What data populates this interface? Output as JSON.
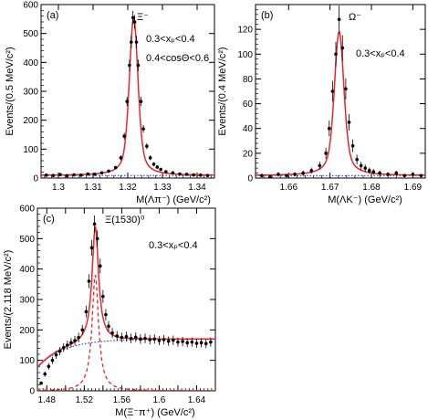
{
  "chart_data": [
    {
      "id": "a",
      "type": "scatter",
      "panel_label": "(a)",
      "particle_label": "Ξ⁻",
      "annotations": [
        "0.3<xₚ<0.4",
        "0.4<cosΘ<0.6"
      ],
      "xlabel": "M(Λπ⁻)  (GeV/c²)",
      "ylabel": "Events/(0.5 MeV/c²)",
      "xlim": [
        1.295,
        1.345
      ],
      "ylim": [
        0,
        600
      ],
      "xticks": [
        1.3,
        1.31,
        1.32,
        1.33,
        1.34
      ],
      "xtick_labels": [
        "1.3",
        "1.31",
        "1.32",
        "1.33",
        "1.34"
      ],
      "yticks": [
        0,
        100,
        200,
        300,
        400,
        500,
        600
      ],
      "ytick_labels": [
        "0",
        "100",
        "200",
        "300",
        "400",
        "500",
        "600"
      ],
      "peak": {
        "mean": 1.3217,
        "height": 555,
        "sigma": 0.0012,
        "gamma": 0.0017,
        "background": 9
      },
      "points": [
        [
          1.2965,
          10
        ],
        [
          1.2985,
          9
        ],
        [
          1.3005,
          12
        ],
        [
          1.3025,
          8
        ],
        [
          1.3045,
          11
        ],
        [
          1.3065,
          10
        ],
        [
          1.3085,
          14
        ],
        [
          1.3105,
          13
        ],
        [
          1.3125,
          18
        ],
        [
          1.3145,
          24
        ],
        [
          1.3165,
          36
        ],
        [
          1.318,
          70
        ],
        [
          1.319,
          145
        ],
        [
          1.3198,
          265
        ],
        [
          1.3205,
          390
        ],
        [
          1.321,
          470
        ],
        [
          1.3215,
          555
        ],
        [
          1.322,
          540
        ],
        [
          1.3225,
          470
        ],
        [
          1.323,
          390
        ],
        [
          1.3238,
          265
        ],
        [
          1.3245,
          170
        ],
        [
          1.3255,
          110
        ],
        [
          1.3265,
          70
        ],
        [
          1.3275,
          48
        ],
        [
          1.3285,
          38
        ],
        [
          1.3295,
          30
        ],
        [
          1.331,
          22
        ],
        [
          1.333,
          18
        ],
        [
          1.335,
          14
        ],
        [
          1.337,
          13
        ],
        [
          1.339,
          11
        ],
        [
          1.341,
          10
        ],
        [
          1.343,
          9
        ]
      ],
      "fit_color": "#e8262c",
      "point_color": "#000000",
      "background_color": "#2040d0"
    },
    {
      "id": "b",
      "type": "scatter",
      "panel_label": "(b)",
      "particle_label": "Ω⁻",
      "annotations": [
        "0.3<xₚ<0.4"
      ],
      "xlabel": "M(ΛK⁻)  (GeV/c²)",
      "ylabel": "Events/(0.4 MeV/c²)",
      "xlim": [
        1.652,
        1.693
      ],
      "ylim": [
        0,
        140
      ],
      "xticks": [
        1.66,
        1.67,
        1.68,
        1.69
      ],
      "xtick_labels": [
        "1.66",
        "1.67",
        "1.68",
        "1.69"
      ],
      "yticks": [
        0,
        20,
        40,
        60,
        80,
        100,
        120
      ],
      "ytick_labels": [
        "0",
        "20",
        "40",
        "60",
        "80",
        "100",
        "120"
      ],
      "peak": {
        "mean": 1.6722,
        "height": 118,
        "sigma": 0.0011,
        "gamma": 0.0016,
        "background": 2
      },
      "points": [
        [
          1.6535,
          2
        ],
        [
          1.6555,
          1
        ],
        [
          1.6575,
          3
        ],
        [
          1.6595,
          2
        ],
        [
          1.6615,
          3
        ],
        [
          1.6635,
          4
        ],
        [
          1.6655,
          6
        ],
        [
          1.6675,
          10
        ],
        [
          1.669,
          20
        ],
        [
          1.6698,
          40
        ],
        [
          1.6706,
          70
        ],
        [
          1.6714,
          100
        ],
        [
          1.6722,
          128
        ],
        [
          1.673,
          105
        ],
        [
          1.6738,
          72
        ],
        [
          1.6746,
          45
        ],
        [
          1.6755,
          26
        ],
        [
          1.6765,
          15
        ],
        [
          1.6775,
          10
        ],
        [
          1.6785,
          8
        ],
        [
          1.6795,
          6
        ],
        [
          1.6805,
          5
        ],
        [
          1.682,
          4
        ],
        [
          1.684,
          3
        ],
        [
          1.686,
          4
        ],
        [
          1.688,
          2
        ],
        [
          1.69,
          3
        ],
        [
          1.692,
          2
        ]
      ],
      "fit_color": "#e8262c",
      "point_color": "#000000",
      "background_color": "#2040d0"
    },
    {
      "id": "c",
      "type": "scatter",
      "panel_label": "(c)",
      "particle_label": "Ξ(1530)⁰",
      "annotations": [
        "0.3<xₚ<0.4"
      ],
      "xlabel": "M(Ξ⁻π⁺)  (GeV/c²)",
      "ylabel": "Events/(2.118 MeV/c²)",
      "xlim": [
        1.47,
        1.66
      ],
      "ylim": [
        0,
        600
      ],
      "xticks": [
        1.48,
        1.5,
        1.52,
        1.54,
        1.56,
        1.58,
        1.6,
        1.62,
        1.64
      ],
      "xtick_labels": [
        "1.48",
        "",
        "1.52",
        "",
        "1.56",
        "",
        "1.6",
        "",
        "1.64"
      ],
      "yticks": [
        0,
        100,
        200,
        300,
        400,
        500,
        600
      ],
      "ytick_labels": [
        "0",
        "100",
        "200",
        "300",
        "400",
        "500",
        "600"
      ],
      "peak": {
        "mean": 1.5318,
        "height": 380,
        "sigma": 0.0042,
        "background_plateau": 170,
        "threshold": 1.4534
      },
      "points": [
        [
          1.474,
          25
        ],
        [
          1.478,
          55
        ],
        [
          1.482,
          80
        ],
        [
          1.486,
          100
        ],
        [
          1.49,
          118
        ],
        [
          1.494,
          130
        ],
        [
          1.498,
          142
        ],
        [
          1.502,
          150
        ],
        [
          1.506,
          158
        ],
        [
          1.51,
          165
        ],
        [
          1.514,
          175
        ],
        [
          1.518,
          200
        ],
        [
          1.522,
          260
        ],
        [
          1.525,
          360
        ],
        [
          1.528,
          470
        ],
        [
          1.531,
          548
        ],
        [
          1.534,
          500
        ],
        [
          1.537,
          410
        ],
        [
          1.54,
          310
        ],
        [
          1.543,
          250
        ],
        [
          1.546,
          212
        ],
        [
          1.55,
          190
        ],
        [
          1.555,
          180
        ],
        [
          1.56,
          175
        ],
        [
          1.565,
          178
        ],
        [
          1.57,
          172
        ],
        [
          1.575,
          176
        ],
        [
          1.58,
          170
        ],
        [
          1.585,
          172
        ],
        [
          1.59,
          168
        ],
        [
          1.595,
          170
        ],
        [
          1.6,
          165
        ],
        [
          1.605,
          168
        ],
        [
          1.61,
          163
        ],
        [
          1.615,
          166
        ],
        [
          1.62,
          160
        ],
        [
          1.625,
          162
        ],
        [
          1.63,
          158
        ],
        [
          1.635,
          160
        ],
        [
          1.64,
          156
        ],
        [
          1.645,
          158
        ],
        [
          1.65,
          155
        ],
        [
          1.655,
          160
        ]
      ],
      "fit_color": "#e8262c",
      "point_color": "#000000",
      "background_color": "#2040d0"
    }
  ]
}
